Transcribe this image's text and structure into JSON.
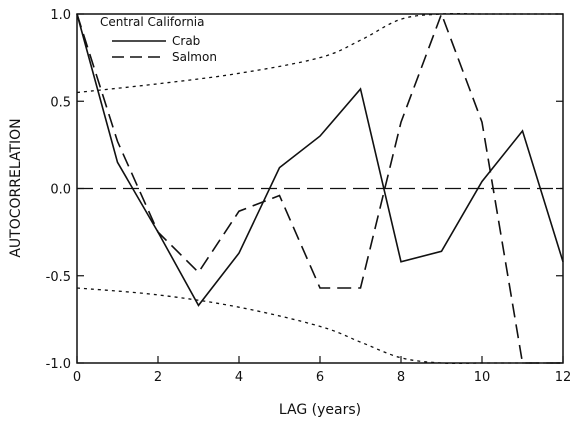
{
  "chart_data": {
    "type": "line",
    "title": "",
    "xlabel": "LAG (years)",
    "ylabel": "AUTOCORRELATION",
    "xlim": [
      0,
      12
    ],
    "ylim": [
      -1.0,
      1.0
    ],
    "x_ticks": [
      0,
      2,
      4,
      6,
      8,
      10,
      12
    ],
    "x_tick_labels": [
      "0",
      "2",
      "4",
      "6",
      "8",
      "10",
      "12"
    ],
    "y_ticks": [
      -1.0,
      -0.5,
      0.0,
      0.5,
      1.0
    ],
    "y_tick_labels": [
      "-1.0",
      "-0.5",
      "0.0",
      "0.5",
      "1.0"
    ],
    "grid": false,
    "legend_title": "Central California",
    "legend_position": "top-left",
    "reference_line": {
      "y": 0.0,
      "style": "long-dashed"
    },
    "series": [
      {
        "name": "Crab",
        "style": "solid",
        "x": [
          0,
          1,
          2,
          3,
          4,
          5,
          6,
          7,
          8,
          9,
          10,
          11,
          12
        ],
        "y": [
          1.0,
          0.15,
          -0.25,
          -0.67,
          -0.37,
          0.12,
          0.3,
          0.57,
          -0.42,
          -0.36,
          0.04,
          0.33,
          -0.42
        ]
      },
      {
        "name": "Salmon",
        "style": "dashed",
        "x": [
          0,
          1,
          2,
          3,
          4,
          5,
          6,
          7,
          8,
          9,
          10,
          11,
          12
        ],
        "y": [
          1.0,
          0.27,
          -0.25,
          -0.48,
          -0.13,
          -0.04,
          -0.57,
          -0.57,
          0.38,
          1.0,
          0.38,
          -1.0,
          -1.0
        ]
      }
    ],
    "confidence_bounds": {
      "style": "dotted",
      "upper": {
        "x": [
          0,
          2,
          4,
          6,
          7,
          8,
          9,
          10,
          11,
          12
        ],
        "y": [
          0.55,
          0.6,
          0.66,
          0.75,
          0.85,
          0.97,
          1.0,
          1.0,
          1.0,
          1.0
        ]
      },
      "lower": {
        "x": [
          0,
          2,
          4,
          6,
          7,
          8,
          9,
          10,
          11,
          12
        ],
        "y": [
          -0.57,
          -0.61,
          -0.68,
          -0.79,
          -0.88,
          -0.97,
          -1.0,
          -1.0,
          -1.0,
          -1.0
        ]
      }
    }
  }
}
